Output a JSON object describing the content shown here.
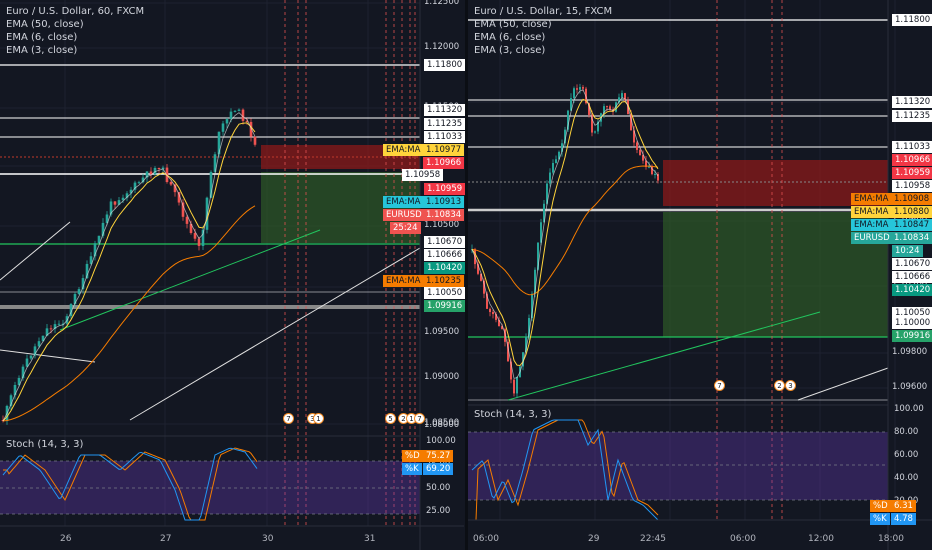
{
  "left": {
    "title": "Euro / U.S. Dollar, 60, FXCM",
    "indicators": [
      "EMA (50, close)",
      "EMA (6, close)",
      "EMA (3, close)"
    ],
    "stoch_title": "Stoch (14, 3, 3)",
    "price_ticks": [
      "1.12500",
      "1.12000",
      "1.11500",
      "1.11000",
      "1.10500",
      "1.10000",
      "1.09500",
      "1.09000",
      "1.08500",
      "1.08000"
    ],
    "price_labels": [
      {
        "text": "1.11800",
        "bg": "#ffffff",
        "fg": "#131722"
      },
      {
        "text": "1.11320",
        "bg": "#ffffff",
        "fg": "#131722"
      },
      {
        "text": "1.11235",
        "bg": "#ffffff",
        "fg": "#131722"
      },
      {
        "text": "1.11033",
        "bg": "#ffffff",
        "fg": "#131722"
      },
      {
        "text": "EMA:MA",
        "bg": "#ffd43b",
        "fg": "#131722"
      },
      {
        "text": "1.10977",
        "bg": "#ffd43b",
        "fg": "#131722"
      },
      {
        "text": "1.10966",
        "bg": "#f23645",
        "fg": "#ffffff"
      },
      {
        "text": "1.10958",
        "bg": "#ffffff",
        "fg": "#131722"
      },
      {
        "text": "1.10959",
        "bg": "#f23645",
        "fg": "#ffffff"
      },
      {
        "text": "EMA:MA",
        "bg": "#26c6da",
        "fg": "#131722"
      },
      {
        "text": "1.10913",
        "bg": "#26c6da",
        "fg": "#131722"
      },
      {
        "text": "EURUSD",
        "bg": "#ef5350",
        "fg": "#ffffff"
      },
      {
        "text": "1.10834",
        "bg": "#ef5350",
        "fg": "#ffffff"
      },
      {
        "text": "25:24",
        "bg": "#ef5350",
        "fg": "#ffffff"
      },
      {
        "text": "1.10670",
        "bg": "#ffffff",
        "fg": "#131722"
      },
      {
        "text": "1.10666",
        "bg": "#ffffff",
        "fg": "#131722"
      },
      {
        "text": "1.10420",
        "bg": "#089981",
        "fg": "#ffffff"
      },
      {
        "text": "EMA:MA",
        "bg": "#f57c00",
        "fg": "#131722"
      },
      {
        "text": "1.10235",
        "bg": "#f57c00",
        "fg": "#131722"
      },
      {
        "text": "1.10050",
        "bg": "#ffffff",
        "fg": "#131722"
      },
      {
        "text": "1.09916",
        "bg": "#26a269",
        "fg": "#ffffff"
      }
    ],
    "stoch_ticks": [
      "100.00",
      "75.00",
      "50.00",
      "25.00"
    ],
    "stoch_labels": [
      {
        "text": "%D",
        "bg": "#f57c00",
        "fg": "#ffffff"
      },
      {
        "text": "75.27",
        "bg": "#f57c00",
        "fg": "#ffffff"
      },
      {
        "text": "%K",
        "bg": "#2196f3",
        "fg": "#ffffff"
      },
      {
        "text": "69.20",
        "bg": "#2196f3",
        "fg": "#ffffff"
      }
    ],
    "time_ticks": [
      "26",
      "27",
      "30",
      "31"
    ],
    "badges": [
      "7",
      "3",
      "1",
      "5",
      "2",
      "1",
      "7"
    ]
  },
  "right": {
    "title": "Euro / U.S. Dollar, 15, FXCM",
    "indicators": [
      "EMA (50, close)",
      "EMA (6, close)",
      "EMA (3, close)"
    ],
    "stoch_title": "Stoch (14, 3, 3)",
    "price_ticks": [
      "1.11800",
      "1.11400",
      "1.11000",
      "1.10600",
      "1.10200",
      "1.09800",
      "1.09600"
    ],
    "price_labels": [
      {
        "text": "1.11800",
        "bg": "#ffffff",
        "fg": "#131722"
      },
      {
        "text": "1.11320",
        "bg": "#ffffff",
        "fg": "#131722"
      },
      {
        "text": "1.11235",
        "bg": "#ffffff",
        "fg": "#131722"
      },
      {
        "text": "1.11033",
        "bg": "#ffffff",
        "fg": "#131722"
      },
      {
        "text": "1.10966",
        "bg": "#f23645",
        "fg": "#ffffff"
      },
      {
        "text": "1.10959",
        "bg": "#f23645",
        "fg": "#ffffff"
      },
      {
        "text": "1.10958",
        "bg": "#ffffff",
        "fg": "#131722"
      },
      {
        "text": "EMA:MA",
        "bg": "#f57c00",
        "fg": "#131722"
      },
      {
        "text": "1.10908",
        "bg": "#f57c00",
        "fg": "#131722"
      },
      {
        "text": "EMA:MA",
        "bg": "#ffd43b",
        "fg": "#131722"
      },
      {
        "text": "1.10880",
        "bg": "#ffd43b",
        "fg": "#131722"
      },
      {
        "text": "EMA:MA",
        "bg": "#26c6da",
        "fg": "#131722"
      },
      {
        "text": "1.10847",
        "bg": "#26c6da",
        "fg": "#131722"
      },
      {
        "text": "EURUSD",
        "bg": "#26a69a",
        "fg": "#ffffff"
      },
      {
        "text": "1.10834",
        "bg": "#26a69a",
        "fg": "#ffffff"
      },
      {
        "text": "10:24",
        "bg": "#26a69a",
        "fg": "#ffffff"
      },
      {
        "text": "1.10670",
        "bg": "#ffffff",
        "fg": "#131722"
      },
      {
        "text": "1.10666",
        "bg": "#ffffff",
        "fg": "#131722"
      },
      {
        "text": "1.10420",
        "bg": "#089981",
        "fg": "#ffffff"
      },
      {
        "text": "1.10050",
        "bg": "#ffffff",
        "fg": "#131722"
      },
      {
        "text": "1.10000",
        "bg": "#ffffff",
        "fg": "#131722"
      },
      {
        "text": "1.09916",
        "bg": "#26a269",
        "fg": "#ffffff"
      }
    ],
    "stoch_ticks": [
      "100.00",
      "80.00",
      "60.00",
      "40.00",
      "20.00"
    ],
    "stoch_labels": [
      {
        "text": "%D",
        "bg": "#f57c00",
        "fg": "#ffffff"
      },
      {
        "text": "6.31",
        "bg": "#f57c00",
        "fg": "#ffffff"
      },
      {
        "text": "%K",
        "bg": "#2196f3",
        "fg": "#ffffff"
      },
      {
        "text": "4.78",
        "bg": "#2196f3",
        "fg": "#ffffff"
      }
    ],
    "time_ticks": [
      "06:00",
      "29",
      "22:45",
      "06:00",
      "12:00",
      "18:00"
    ],
    "badges": [
      "7",
      "2",
      "3"
    ]
  },
  "colors": {
    "background": "#131722",
    "bull": "#26a69a",
    "bear": "#ef5350",
    "ema50": "#f57c00",
    "ema6": "#ffd43b",
    "ema3": "#e0e0e0",
    "stoch_d": "#f57c00",
    "stoch_k": "#2196f3",
    "stoch_band": "#673ab7"
  }
}
